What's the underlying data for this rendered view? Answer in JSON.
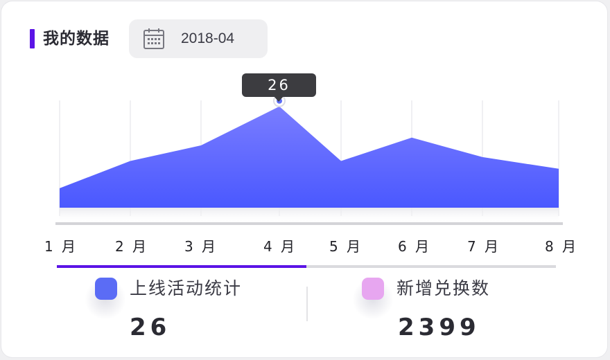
{
  "header": {
    "title": "我的数据",
    "date": "2018-04",
    "calendar_icon": "calendar-icon"
  },
  "chart_data": {
    "type": "area",
    "categories": [
      "1 月",
      "2 月",
      "3 月",
      "4 月",
      "5 月",
      "6 月",
      "7 月",
      "8 月"
    ],
    "series": [
      {
        "values": [
          5,
          12,
          16,
          26,
          12,
          18,
          13,
          10
        ]
      }
    ],
    "ylim": [
      0,
      32
    ],
    "highlight": {
      "index": 3,
      "label": "26"
    },
    "grid": "vertical",
    "colors": {
      "area_top": "#7a7dff",
      "area_bottom": "#4a58ff",
      "point": "#5b6cf5"
    }
  },
  "tabs": {
    "active_index": 0
  },
  "stats": [
    {
      "label": "上线活动统计",
      "value": "26",
      "color": "#5b6cf5"
    },
    {
      "label": "新增兑换数",
      "value": "2399",
      "color": "#e7a6f0"
    }
  ]
}
